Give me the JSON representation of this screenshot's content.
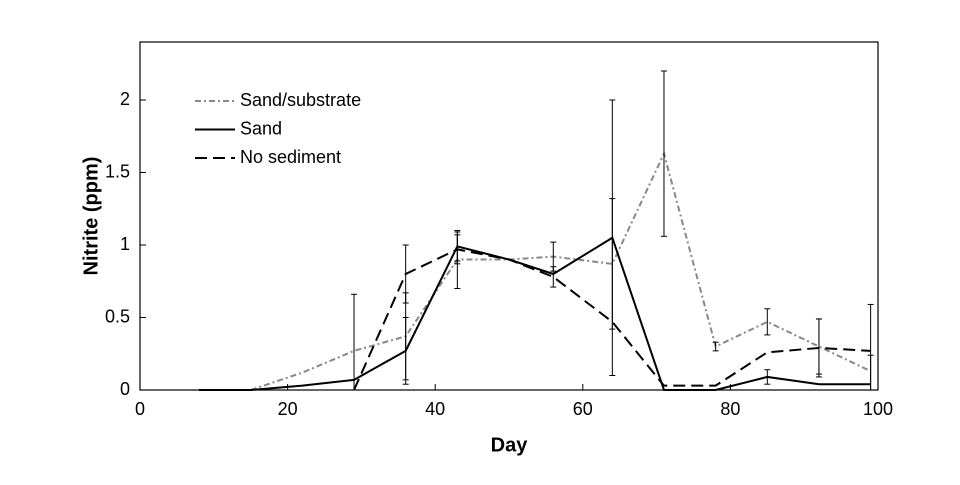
{
  "chart_data": {
    "type": "line",
    "x_label": "Day",
    "y_label": "Nitrite (ppm)",
    "x": [
      8,
      15,
      22,
      29,
      36,
      43,
      50,
      56,
      64,
      71,
      78,
      85,
      92,
      99
    ],
    "xlim": [
      0,
      100
    ],
    "xticks": [
      0,
      20,
      40,
      60,
      80,
      100
    ],
    "ylim": [
      0,
      2.4
    ],
    "yticks": [
      0,
      0.5,
      1,
      1.5,
      2
    ],
    "legend": "upper left",
    "series": [
      {
        "name": "Sand/substrate",
        "color": "#888888",
        "dash": "dashdot",
        "values": [
          null,
          0,
          0.12,
          0.27,
          0.37,
          0.9,
          0.9,
          0.92,
          0.87,
          1.63,
          0.3,
          0.47,
          0.3,
          0.13
        ],
        "errors": [
          null,
          null,
          null,
          0.39,
          0.3,
          0.2,
          null,
          0.1,
          0.45,
          0.57,
          0.03,
          0.09,
          0.19,
          0.46
        ]
      },
      {
        "name": "Sand",
        "color": "#000000",
        "dash": "solid",
        "values": [
          0,
          0,
          0.03,
          0.07,
          0.27,
          0.99,
          0.9,
          0.8,
          1.05,
          0,
          0,
          0.09,
          0.04,
          0.04
        ],
        "errors": [
          null,
          null,
          null,
          null,
          0.23,
          0.1,
          null,
          null,
          0.95,
          null,
          null,
          0.05,
          null,
          0.2
        ]
      },
      {
        "name": "No sediment",
        "color": "#000000",
        "dash": "dashed",
        "values": [
          null,
          null,
          null,
          0,
          0.8,
          0.97,
          0.9,
          0.78,
          0.47,
          0.03,
          0.03,
          0.26,
          0.29,
          0.27
        ],
        "errors": [
          null,
          null,
          null,
          null,
          0.2,
          0.1,
          null,
          0.07,
          null,
          null,
          null,
          null,
          0.2,
          null
        ]
      }
    ]
  }
}
